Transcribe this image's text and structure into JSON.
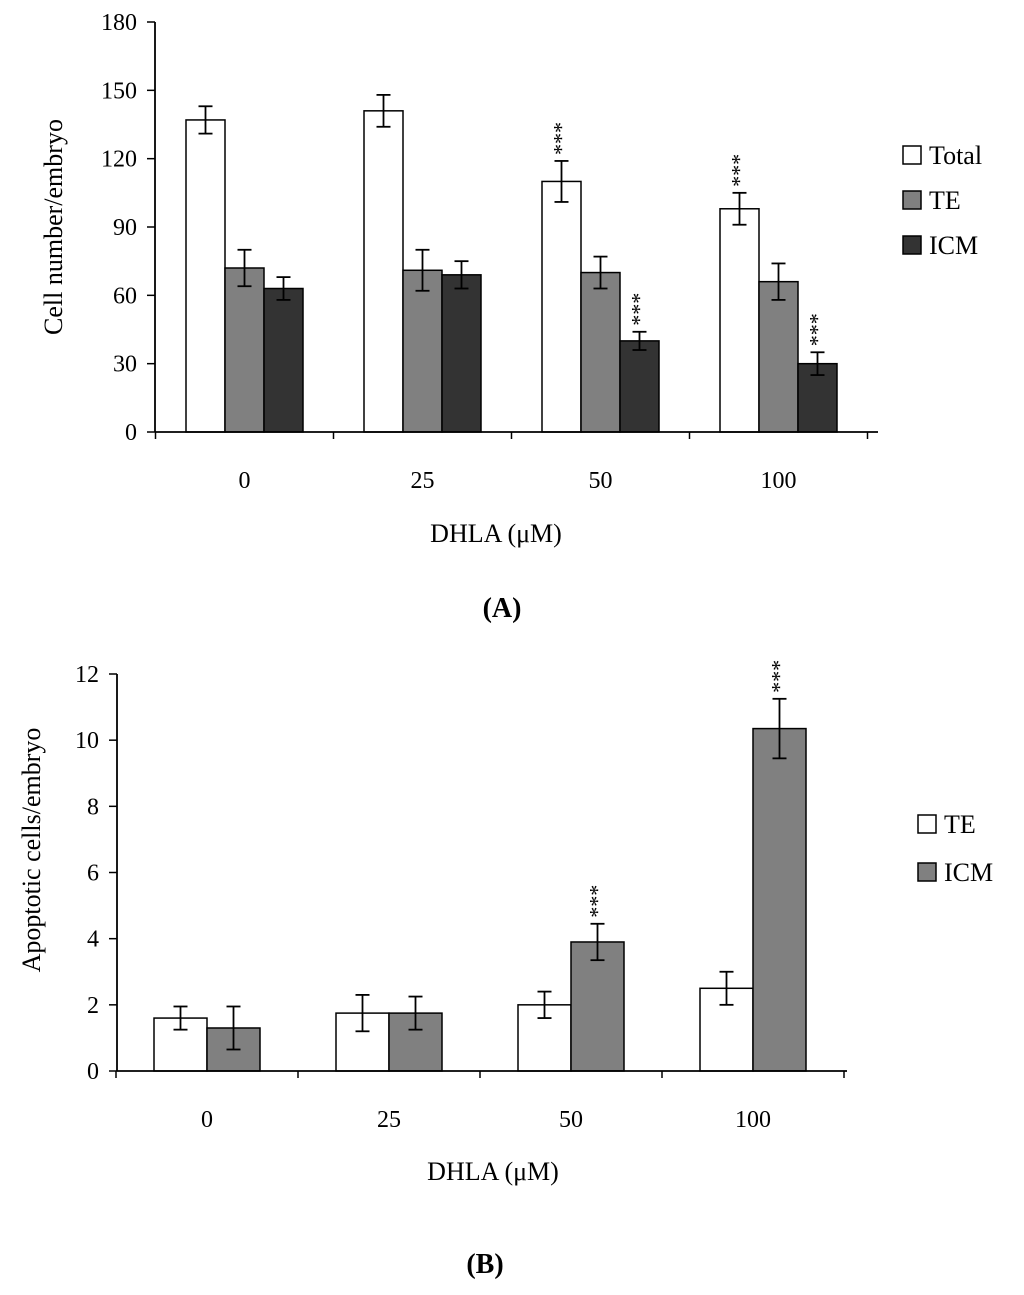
{
  "chart_data": [
    {
      "type": "bar",
      "panel_label": "(A)",
      "title": "",
      "xlabel": "DHLA (μM)",
      "ylabel": "Cell number/embryo",
      "categories": [
        "0",
        "25",
        "50",
        "100"
      ],
      "ylim": [
        0,
        180
      ],
      "yticks": [
        0,
        30,
        60,
        90,
        120,
        150,
        180
      ],
      "legend_position": "right",
      "series": [
        {
          "name": "Total",
          "color": "#ffffff",
          "values": [
            137,
            141,
            110,
            98
          ],
          "errors": [
            6,
            7,
            9,
            7
          ],
          "annotations": [
            "",
            "",
            "***",
            "***"
          ]
        },
        {
          "name": "TE",
          "color": "#808080",
          "values": [
            72,
            71,
            70,
            66
          ],
          "errors": [
            8,
            9,
            7,
            8
          ],
          "annotations": [
            "",
            "",
            "",
            ""
          ]
        },
        {
          "name": "ICM",
          "color": "#333333",
          "values": [
            63,
            69,
            40,
            30
          ],
          "errors": [
            5,
            6,
            4,
            5
          ],
          "annotations": [
            "",
            "",
            "***",
            "***"
          ]
        }
      ]
    },
    {
      "type": "bar",
      "panel_label": "(B)",
      "title": "",
      "xlabel": "DHLA (μM)",
      "ylabel": "Apoptotic cells/embryo",
      "categories": [
        "0",
        "25",
        "50",
        "100"
      ],
      "ylim": [
        0,
        12
      ],
      "yticks": [
        0,
        2,
        4,
        6,
        8,
        10,
        12
      ],
      "legend_position": "right",
      "series": [
        {
          "name": "TE",
          "color": "#ffffff",
          "values": [
            1.6,
            1.75,
            2.0,
            2.5
          ],
          "errors": [
            0.35,
            0.55,
            0.4,
            0.5
          ],
          "annotations": [
            "",
            "",
            "",
            ""
          ]
        },
        {
          "name": "ICM",
          "color": "#808080",
          "values": [
            1.3,
            1.75,
            3.9,
            10.35
          ],
          "errors": [
            0.65,
            0.5,
            0.55,
            0.9
          ],
          "annotations": [
            "",
            "",
            "***",
            "***"
          ]
        }
      ]
    }
  ]
}
